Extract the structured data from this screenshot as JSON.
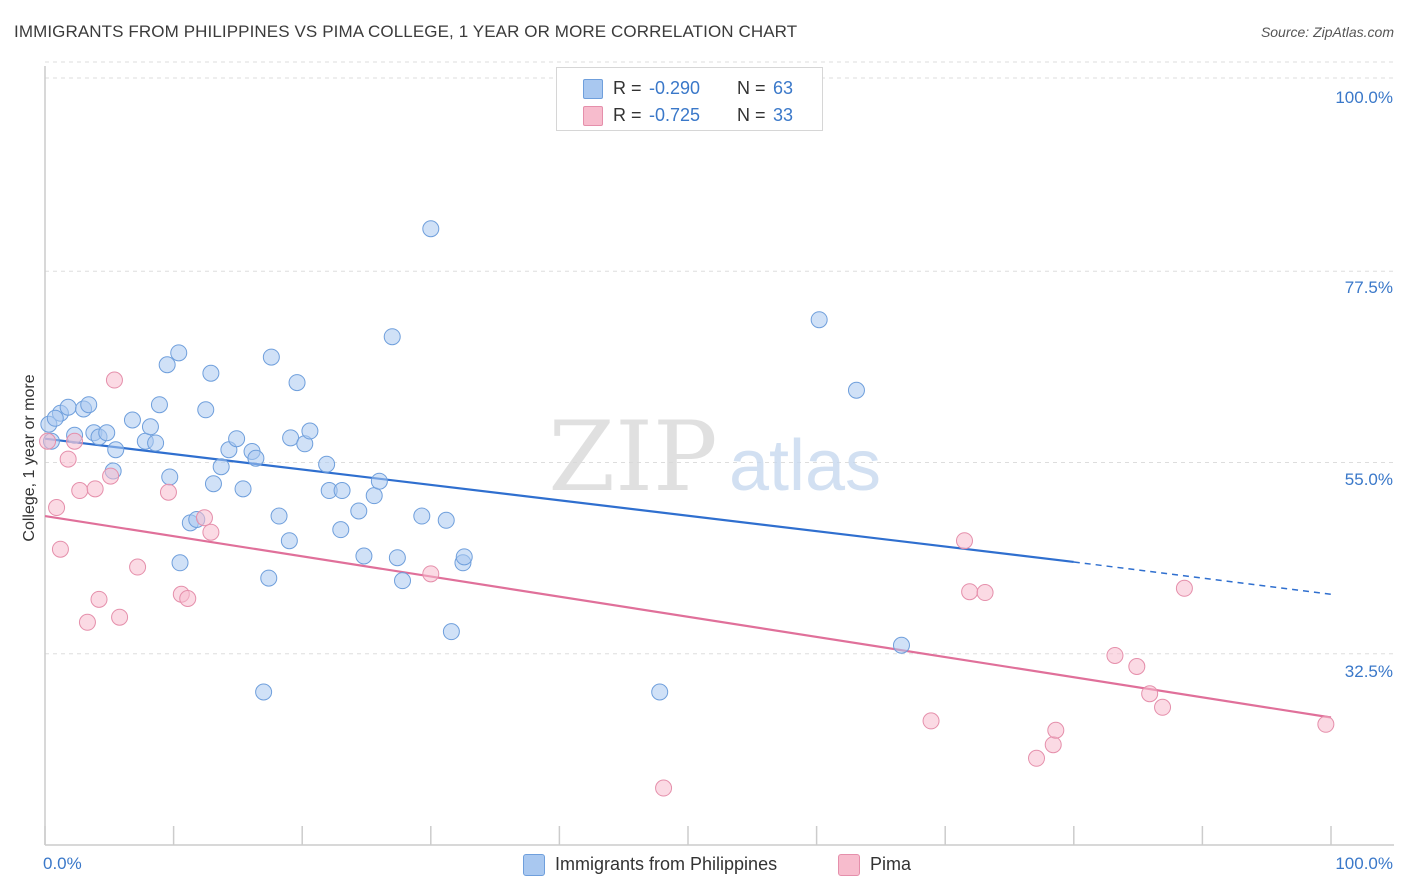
{
  "title": "IMMIGRANTS FROM PHILIPPINES VS PIMA COLLEGE, 1 YEAR OR MORE CORRELATION CHART",
  "source": "Source: ZipAtlas.com",
  "watermark": {
    "zip": "ZIP",
    "atlas": "atlas"
  },
  "colors": {
    "blue_fill": "#a9c8f0",
    "blue_stroke": "#6f9fdc",
    "blue_line": "#2f6fcf",
    "pink_fill": "#f7bccd",
    "pink_stroke": "#e58fab",
    "pink_line": "#e0709a",
    "tick_text": "#3a78c9",
    "grid": "#dddddd"
  },
  "legend_stats": [
    {
      "r_label": "R =",
      "r_value": "-0.290",
      "n_label": "N =",
      "n_value": "63",
      "color": "#a9c8f0",
      "border": "#6f9fdc"
    },
    {
      "r_label": "R =",
      "r_value": "-0.725",
      "n_label": "N =",
      "n_value": "33",
      "color": "#f7bccd",
      "border": "#e58fab"
    }
  ],
  "chart_data": {
    "type": "scatter",
    "title": "IMMIGRANTS FROM PHILIPPINES VS PIMA COLLEGE, 1 YEAR OR MORE CORRELATION CHART",
    "xlabel": "",
    "ylabel": "College, 1 year or more",
    "xlim": [
      0,
      100
    ],
    "ylim": [
      10,
      102
    ],
    "x_tick_labels": [
      "0.0%",
      "100.0%"
    ],
    "y_ticks": [
      32.5,
      55.0,
      77.5,
      100.0
    ],
    "y_tick_labels": [
      "32.5%",
      "55.0%",
      "77.5%",
      "100.0%"
    ],
    "grid": true,
    "legend_position": "bottom",
    "series": [
      {
        "name": "Immigrants from Philippines",
        "color": "#a9c8f0",
        "points": [
          [
            0.3,
            59.5
          ],
          [
            0.5,
            57.5
          ],
          [
            1.2,
            60.8
          ],
          [
            1.8,
            61.5
          ],
          [
            2.3,
            58.2
          ],
          [
            3.0,
            61.3
          ],
          [
            3.4,
            61.8
          ],
          [
            3.8,
            58.5
          ],
          [
            4.2,
            58.0
          ],
          [
            4.8,
            58.5
          ],
          [
            5.5,
            56.5
          ],
          [
            5.3,
            54.0
          ],
          [
            6.8,
            60.0
          ],
          [
            7.8,
            57.5
          ],
          [
            8.2,
            59.2
          ],
          [
            8.6,
            57.3
          ],
          [
            8.9,
            61.8
          ],
          [
            9.5,
            66.5
          ],
          [
            9.7,
            53.3
          ],
          [
            10.4,
            67.9
          ],
          [
            10.5,
            43.2
          ],
          [
            11.3,
            47.9
          ],
          [
            11.8,
            48.3
          ],
          [
            12.5,
            61.2
          ],
          [
            12.9,
            65.5
          ],
          [
            13.1,
            52.5
          ],
          [
            13.7,
            54.5
          ],
          [
            14.3,
            56.5
          ],
          [
            14.9,
            57.8
          ],
          [
            15.4,
            51.9
          ],
          [
            16.1,
            56.3
          ],
          [
            16.4,
            55.5
          ],
          [
            17.0,
            28.0
          ],
          [
            17.4,
            41.4
          ],
          [
            17.6,
            67.4
          ],
          [
            18.2,
            48.7
          ],
          [
            19.0,
            45.8
          ],
          [
            19.1,
            57.9
          ],
          [
            19.6,
            64.4
          ],
          [
            20.2,
            57.2
          ],
          [
            20.6,
            58.7
          ],
          [
            21.9,
            54.8
          ],
          [
            22.1,
            51.7
          ],
          [
            23.0,
            47.1
          ],
          [
            23.1,
            51.7
          ],
          [
            24.4,
            49.3
          ],
          [
            24.8,
            44.0
          ],
          [
            25.6,
            51.1
          ],
          [
            26.0,
            52.8
          ],
          [
            27.0,
            69.8
          ],
          [
            27.4,
            43.8
          ],
          [
            27.8,
            41.1
          ],
          [
            29.3,
            48.7
          ],
          [
            30.0,
            82.5
          ],
          [
            31.2,
            48.2
          ],
          [
            31.6,
            35.1
          ],
          [
            32.5,
            43.2
          ],
          [
            32.6,
            43.9
          ],
          [
            47.8,
            28.0
          ],
          [
            60.2,
            71.8
          ],
          [
            63.1,
            63.5
          ],
          [
            66.6,
            33.5
          ],
          [
            0.8,
            60.2
          ]
        ]
      },
      {
        "name": "Pima",
        "color": "#f7bccd",
        "points": [
          [
            0.2,
            57.5
          ],
          [
            0.9,
            49.7
          ],
          [
            1.2,
            44.8
          ],
          [
            1.8,
            55.4
          ],
          [
            2.3,
            57.5
          ],
          [
            2.7,
            51.7
          ],
          [
            3.3,
            36.2
          ],
          [
            3.9,
            51.9
          ],
          [
            4.2,
            38.9
          ],
          [
            5.1,
            53.4
          ],
          [
            5.4,
            64.7
          ],
          [
            5.8,
            36.8
          ],
          [
            7.2,
            42.7
          ],
          [
            9.6,
            51.5
          ],
          [
            10.6,
            39.5
          ],
          [
            11.1,
            39.0
          ],
          [
            12.4,
            48.5
          ],
          [
            12.9,
            46.8
          ],
          [
            30.0,
            41.9
          ],
          [
            48.1,
            16.7
          ],
          [
            68.9,
            24.6
          ],
          [
            71.5,
            45.8
          ],
          [
            71.9,
            39.8
          ],
          [
            73.1,
            39.7
          ],
          [
            77.1,
            20.2
          ],
          [
            78.4,
            21.8
          ],
          [
            78.6,
            23.5
          ],
          [
            83.2,
            32.3
          ],
          [
            84.9,
            31.0
          ],
          [
            85.9,
            27.8
          ],
          [
            86.9,
            26.2
          ],
          [
            88.6,
            40.2
          ],
          [
            99.6,
            24.2
          ]
        ]
      }
    ],
    "trendlines": [
      {
        "series": "Immigrants from Philippines",
        "x_start": 0,
        "y_start": 57.8,
        "x_end": 80,
        "y_end": 43.3,
        "dashed_to_x": 100,
        "dashed_to_y": 39.5
      },
      {
        "series": "Pima",
        "x_start": 0,
        "y_start": 48.7,
        "x_end": 100,
        "y_end": 25.0
      }
    ]
  }
}
